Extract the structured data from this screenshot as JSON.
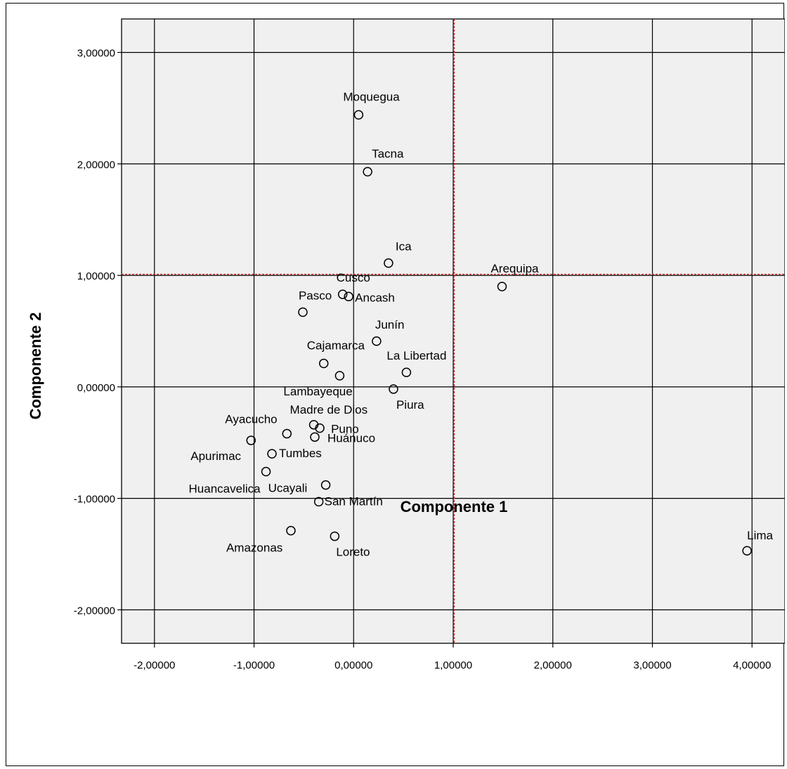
{
  "chart_data": {
    "type": "scatter",
    "xlabel": "Componente 1",
    "ylabel": "Componente 2",
    "xlim": [
      -2.33,
      4.33
    ],
    "ylim": [
      -2.3,
      3.3
    ],
    "xticks": [
      -2,
      -1,
      0,
      1,
      2,
      3,
      4
    ],
    "yticks": [
      -2,
      -1,
      0,
      1,
      2,
      3
    ],
    "xtick_labels": [
      "-2,00000",
      "-1,00000",
      "0,00000",
      "1,00000",
      "2,00000",
      "3,00000",
      "4,00000"
    ],
    "ytick_labels": [
      "-2,00000",
      "-1,00000",
      "0,00000",
      "1,00000",
      "2,00000",
      "3,00000"
    ],
    "grid": true,
    "reference_lines": {
      "x": 1.01,
      "y": 1.01,
      "color": "#d0322f"
    },
    "colors": {
      "plot_bg": "#f0f0f0",
      "grid": "#000000",
      "marker": "#000000"
    },
    "points": [
      {
        "label": "Moquegua",
        "x": 0.05,
        "y": 2.44
      },
      {
        "label": "Tacna",
        "x": 0.14,
        "y": 1.93
      },
      {
        "label": "Ica",
        "x": 0.35,
        "y": 1.11
      },
      {
        "label": "Arequipa",
        "x": 1.49,
        "y": 0.9
      },
      {
        "label": "Cusco",
        "x": -0.11,
        "y": 0.83
      },
      {
        "label": "Ancash",
        "x": -0.05,
        "y": 0.81
      },
      {
        "label": "Pasco",
        "x": -0.51,
        "y": 0.67
      },
      {
        "label": "Junín",
        "x": 0.23,
        "y": 0.41
      },
      {
        "label": "Cajamarca",
        "x": -0.3,
        "y": 0.21
      },
      {
        "label": "La Libertad",
        "x": 0.53,
        "y": 0.13
      },
      {
        "label": "Lambayeque",
        "x": -0.14,
        "y": 0.1
      },
      {
        "label": "Piura",
        "x": 0.4,
        "y": -0.02
      },
      {
        "label": "Madre de Dios",
        "x": -0.4,
        "y": -0.34
      },
      {
        "label": "Puno",
        "x": -0.34,
        "y": -0.37
      },
      {
        "label": "Ayacucho",
        "x": -0.67,
        "y": -0.42
      },
      {
        "label": "Huánuco",
        "x": -0.39,
        "y": -0.45
      },
      {
        "label": "Apurimac",
        "x": -1.03,
        "y": -0.48
      },
      {
        "label": "Tumbes",
        "x": -0.82,
        "y": -0.6
      },
      {
        "label": "Huancavelica",
        "x": -0.88,
        "y": -0.76
      },
      {
        "label": "Ucayali",
        "x": -0.28,
        "y": -0.88
      },
      {
        "label": "San Martín",
        "x": -0.35,
        "y": -1.03
      },
      {
        "label": "Amazonas",
        "x": -0.63,
        "y": -1.29
      },
      {
        "label": "Loreto",
        "x": -0.19,
        "y": -1.34
      },
      {
        "label": "Lima",
        "x": 3.95,
        "y": -1.47
      }
    ]
  }
}
